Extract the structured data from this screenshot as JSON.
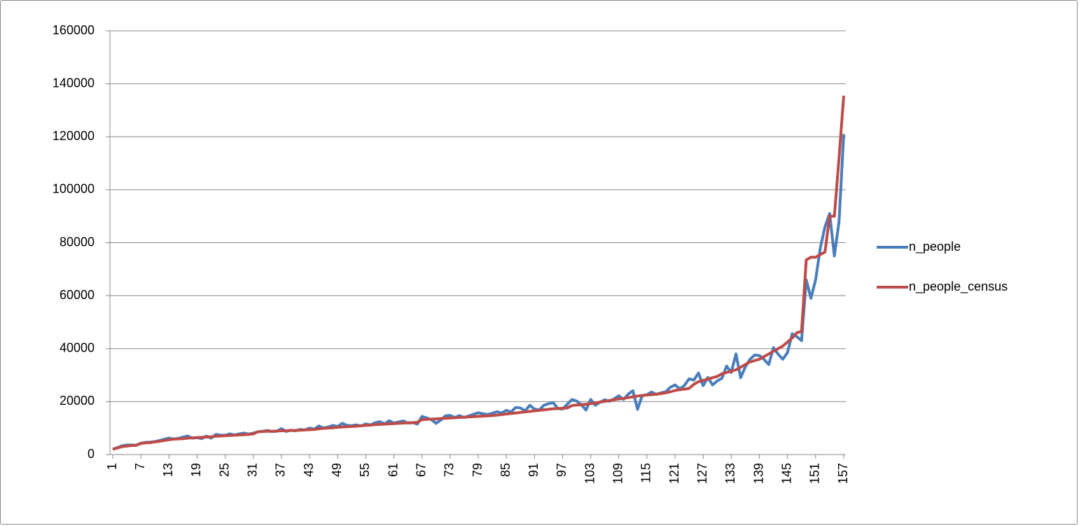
{
  "chart_data": {
    "type": "line",
    "categories": [
      "1",
      null,
      null,
      null,
      null,
      null,
      "7",
      null,
      null,
      null,
      null,
      null,
      "13",
      null,
      null,
      null,
      null,
      null,
      "19",
      null,
      null,
      null,
      null,
      null,
      "25",
      null,
      null,
      null,
      null,
      null,
      "31",
      null,
      null,
      null,
      null,
      null,
      "37",
      null,
      null,
      null,
      null,
      null,
      "43",
      null,
      null,
      null,
      null,
      null,
      "49",
      null,
      null,
      null,
      null,
      null,
      "55",
      null,
      null,
      null,
      null,
      null,
      "61",
      null,
      null,
      null,
      null,
      null,
      "67",
      null,
      null,
      null,
      null,
      null,
      "73",
      null,
      null,
      null,
      null,
      null,
      "79",
      null,
      null,
      null,
      null,
      null,
      "85",
      null,
      null,
      null,
      null,
      null,
      "91",
      null,
      null,
      null,
      null,
      null,
      "97",
      null,
      null,
      null,
      null,
      null,
      "103",
      null,
      null,
      null,
      null,
      null,
      "109",
      null,
      null,
      null,
      null,
      null,
      "115",
      null,
      null,
      null,
      null,
      null,
      "121",
      null,
      null,
      null,
      null,
      null,
      "127",
      null,
      null,
      null,
      null,
      null,
      "133",
      null,
      null,
      null,
      null,
      null,
      "139",
      null,
      null,
      null,
      null,
      null,
      "145",
      null,
      null,
      null,
      null,
      null,
      "151",
      null,
      null,
      null,
      null,
      null,
      "157"
    ],
    "series": [
      {
        "name": "n_people",
        "color": "#4a7ebb",
        "values": [
          2000,
          2600,
          3300,
          3600,
          3600,
          3500,
          4300,
          4600,
          4700,
          4900,
          5300,
          5800,
          6200,
          5900,
          6100,
          6600,
          7000,
          6200,
          6400,
          6000,
          7000,
          6200,
          7600,
          7300,
          7300,
          7800,
          7400,
          7800,
          8100,
          7700,
          8100,
          8600,
          8800,
          9100,
          8700,
          8800,
          9800,
          8700,
          9200,
          9000,
          9500,
          9300,
          10000,
          9600,
          10800,
          10000,
          10400,
          11000,
          10600,
          11800,
          11000,
          10900,
          11200,
          10800,
          11600,
          11200,
          12000,
          12400,
          11600,
          12800,
          11900,
          12300,
          12700,
          11900,
          12100,
          11500,
          14400,
          13800,
          13200,
          11800,
          13000,
          14600,
          14800,
          14000,
          14700,
          14000,
          14600,
          15200,
          15800,
          15400,
          15100,
          15600,
          16200,
          15700,
          16700,
          16100,
          17800,
          17600,
          16500,
          18600,
          17200,
          16800,
          18600,
          19200,
          19600,
          17400,
          17200,
          19000,
          20800,
          20200,
          18900,
          16800,
          20800,
          18600,
          19800,
          20700,
          20100,
          21000,
          22200,
          20800,
          22800,
          24100,
          17100,
          22300,
          22600,
          23600,
          22700,
          23300,
          23700,
          25400,
          26300,
          24800,
          26100,
          28600,
          28100,
          30800,
          26000,
          29100,
          26300,
          27800,
          28800,
          33400,
          31000,
          38000,
          29000,
          33100,
          36000,
          37600,
          37400,
          35900,
          34000,
          40400,
          37900,
          36000,
          38500,
          45600,
          44500,
          43000,
          66000,
          59000,
          66000,
          78000,
          86000,
          91000,
          75000,
          88000,
          121000
        ]
      },
      {
        "name": "n_people_census",
        "color": "#be4b48",
        "values": [
          2000,
          2500,
          3000,
          3200,
          3400,
          3500,
          4200,
          4400,
          4500,
          4800,
          5000,
          5300,
          5600,
          5800,
          5900,
          6000,
          6200,
          6300,
          6400,
          6500,
          6600,
          6700,
          6900,
          7000,
          7100,
          7200,
          7300,
          7400,
          7500,
          7600,
          7800,
          8600,
          8700,
          8800,
          8800,
          8900,
          9000,
          9000,
          9100,
          9100,
          9200,
          9300,
          9400,
          9500,
          9700,
          9900,
          10000,
          10100,
          10300,
          10400,
          10500,
          10600,
          10700,
          10900,
          11000,
          11100,
          11300,
          11400,
          11500,
          11600,
          11700,
          11800,
          11900,
          12000,
          12000,
          12200,
          13200,
          13300,
          13400,
          13500,
          13600,
          13700,
          13800,
          13900,
          14000,
          14100,
          14200,
          14300,
          14400,
          14500,
          14600,
          14700,
          14900,
          15100,
          15300,
          15500,
          15700,
          15900,
          16100,
          16300,
          16500,
          16700,
          16900,
          17100,
          17300,
          17400,
          17500,
          17600,
          18500,
          18700,
          18800,
          19000,
          19200,
          19500,
          19800,
          20100,
          20400,
          20700,
          21000,
          21200,
          21500,
          21800,
          22100,
          22300,
          22500,
          22600,
          22800,
          23000,
          23300,
          23700,
          24200,
          24500,
          24700,
          25000,
          26500,
          27500,
          28000,
          28500,
          29000,
          29500,
          30500,
          31000,
          31500,
          32000,
          33000,
          34000,
          35000,
          35500,
          36000,
          37000,
          38000,
          39000,
          40000,
          41000,
          42500,
          44000,
          46000,
          46500,
          73500,
          74500,
          74500,
          75500,
          76500,
          90000,
          90000,
          112000,
          135500
        ]
      }
    ],
    "ylim": [
      0,
      160000
    ],
    "yticks": [
      0,
      20000,
      40000,
      60000,
      80000,
      100000,
      120000,
      140000,
      160000
    ],
    "grid": true,
    "legend_position": "right"
  }
}
